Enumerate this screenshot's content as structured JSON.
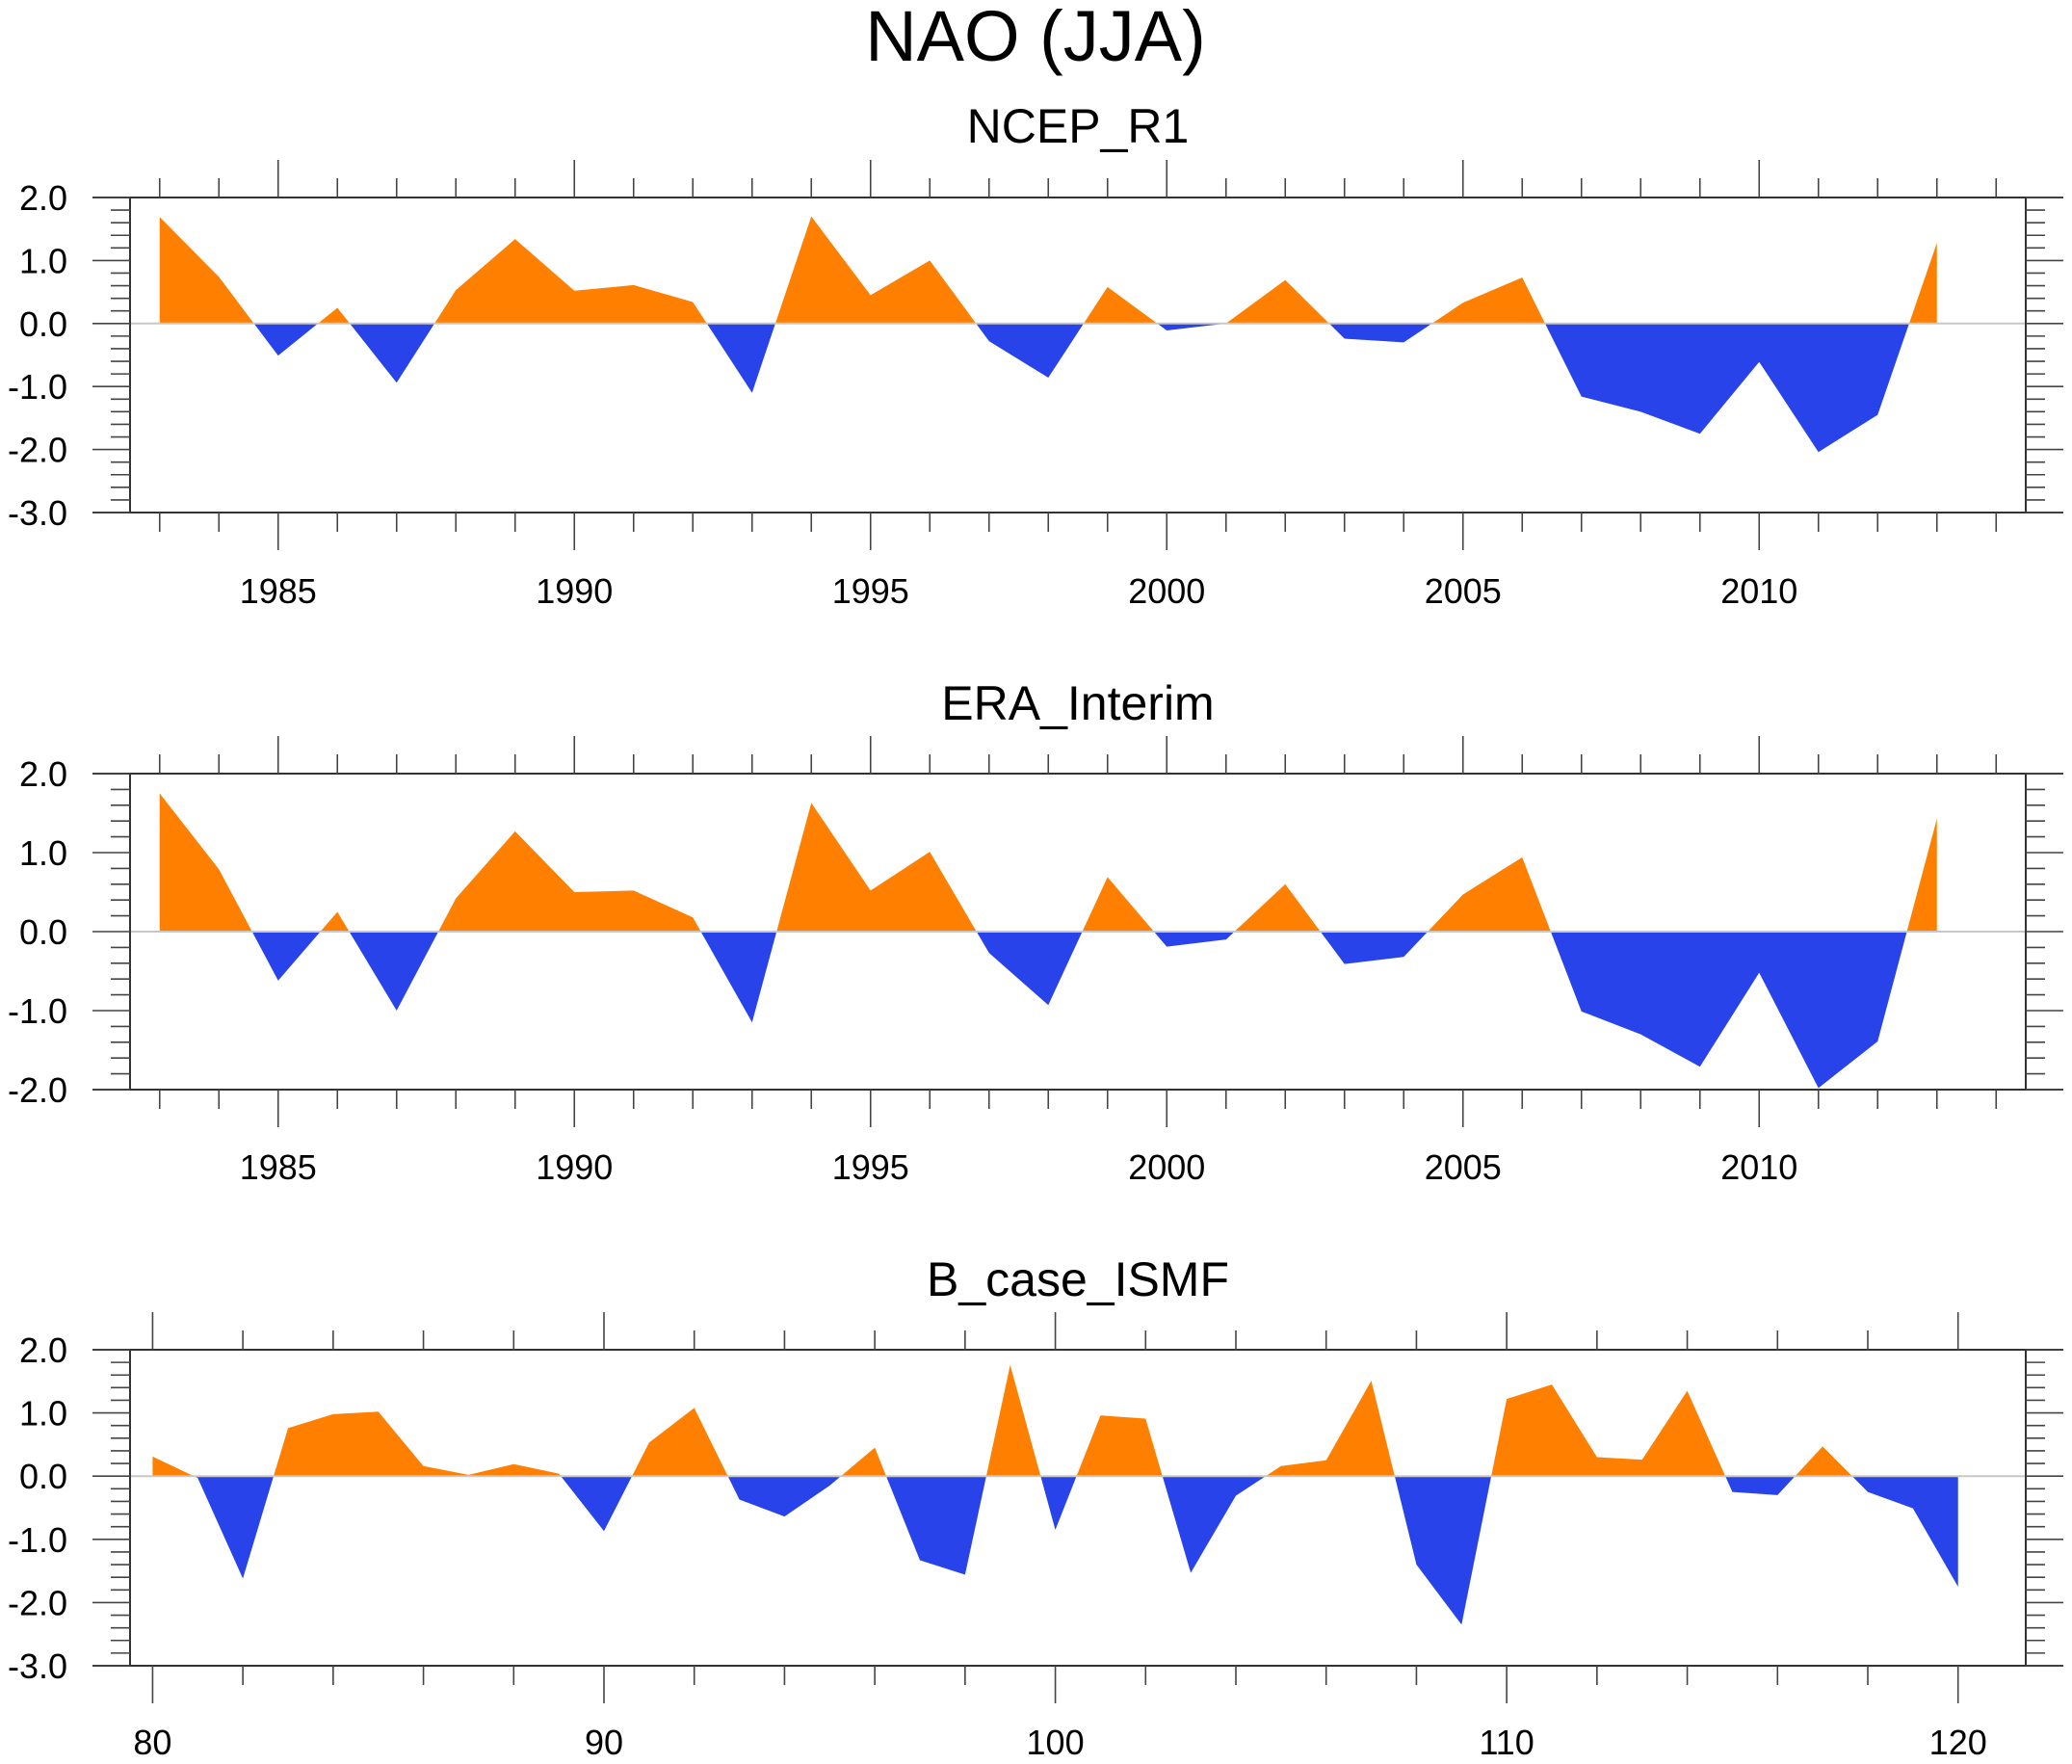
{
  "chart_data": {
    "title": "NAO (JJA)",
    "colors": {
      "positive": "#FF8000",
      "negative": "#2843EA",
      "zero_line": "#C8C8C8",
      "frame": "#000000"
    },
    "panels": [
      {
        "type": "area",
        "title": "NCEP_R1",
        "xlabel": "",
        "ylabel": "",
        "xlim": [
          1982.5,
          2014.5
        ],
        "ylim": [
          -3.0,
          2.0
        ],
        "x_major_ticks": [
          1985,
          1990,
          1995,
          2000,
          2005,
          2010
        ],
        "x_minor_step": 1,
        "x_tick_labels": [
          "1985",
          "1990",
          "1995",
          "2000",
          "2005",
          "2010"
        ],
        "y_major_ticks": [
          2.0,
          1.0,
          0.0,
          -1.0,
          -2.0,
          -3.0
        ],
        "y_tick_labels": [
          "2.0",
          "1.0",
          "0.0",
          "-1.0",
          "-2.0",
          "-3.0"
        ],
        "y_minor_step": 0.2,
        "x": [
          1983,
          1984,
          1985,
          1986,
          1987,
          1988,
          1989,
          1990,
          1991,
          1992,
          1993,
          1994,
          1995,
          1996,
          1997,
          1998,
          1999,
          2000,
          2001,
          2002,
          2003,
          2004,
          2005,
          2006,
          2007,
          2008,
          2009,
          2010,
          2011,
          2012,
          2013
        ],
        "values": [
          1.69,
          0.74,
          -0.51,
          0.25,
          -0.94,
          0.53,
          1.34,
          0.52,
          0.61,
          0.34,
          -1.1,
          1.7,
          0.45,
          1.0,
          -0.28,
          -0.86,
          0.58,
          -0.11,
          0.0,
          0.69,
          -0.24,
          -0.3,
          0.33,
          0.73,
          -1.16,
          -1.4,
          -1.75,
          -0.61,
          -2.04,
          -1.45,
          1.28
        ]
      },
      {
        "type": "area",
        "title": "ERA_Interim",
        "xlabel": "",
        "ylabel": "",
        "xlim": [
          1982.5,
          2014.5
        ],
        "ylim": [
          -2.0,
          2.0
        ],
        "x_major_ticks": [
          1985,
          1990,
          1995,
          2000,
          2005,
          2010
        ],
        "x_minor_step": 1,
        "x_tick_labels": [
          "1985",
          "1990",
          "1995",
          "2000",
          "2005",
          "2010"
        ],
        "y_major_ticks": [
          2.0,
          1.0,
          0.0,
          -1.0,
          -2.0
        ],
        "y_tick_labels": [
          "2.0",
          "1.0",
          "0.0",
          "-1.0",
          "-2.0"
        ],
        "y_minor_step": 0.2,
        "x": [
          1983,
          1984,
          1985,
          1986,
          1987,
          1988,
          1989,
          1990,
          1991,
          1992,
          1993,
          1994,
          1995,
          1996,
          1997,
          1998,
          1999,
          2000,
          2001,
          2002,
          2003,
          2004,
          2005,
          2006,
          2007,
          2008,
          2009,
          2010,
          2011,
          2012,
          2013
        ],
        "values": [
          1.75,
          0.79,
          -0.62,
          0.25,
          -1.0,
          0.42,
          1.27,
          0.5,
          0.52,
          0.18,
          -1.15,
          1.63,
          0.52,
          1.01,
          -0.27,
          -0.93,
          0.69,
          -0.19,
          -0.1,
          0.6,
          -0.41,
          -0.32,
          0.47,
          0.94,
          -1.01,
          -1.3,
          -1.71,
          -0.52,
          -1.98,
          -1.39,
          1.43
        ]
      },
      {
        "type": "area",
        "title": "B_case_ISMF",
        "xlabel": "",
        "ylabel": "",
        "xlim": [
          79.5,
          121.5
        ],
        "ylim": [
          -3.0,
          2.0
        ],
        "x_major_ticks": [
          80,
          90,
          100,
          110,
          120
        ],
        "x_minor_step": 2,
        "x_tick_labels": [
          "80",
          "90",
          "100",
          "110",
          "120"
        ],
        "y_major_ticks": [
          2.0,
          1.0,
          0.0,
          -1.0,
          -2.0,
          -3.0
        ],
        "y_tick_labels": [
          "2.0",
          "1.0",
          "0.0",
          "-1.0",
          "-2.0",
          "-3.0"
        ],
        "y_minor_step": 0.2,
        "x": [
          80,
          81,
          82,
          83,
          84,
          85,
          86,
          87,
          88,
          89,
          90,
          91,
          92,
          93,
          94,
          95,
          96,
          97,
          98,
          99,
          100,
          101,
          102,
          103,
          104,
          105,
          106,
          107,
          108,
          109,
          110,
          111,
          112,
          113,
          114,
          115,
          116,
          117,
          118,
          119,
          120
        ],
        "values": [
          0.31,
          -0.03,
          -1.62,
          0.76,
          0.98,
          1.02,
          0.16,
          0.02,
          0.19,
          0.04,
          -0.87,
          0.53,
          1.08,
          -0.37,
          -0.64,
          -0.15,
          0.45,
          -1.33,
          -1.56,
          1.76,
          -0.85,
          0.96,
          0.91,
          -1.53,
          -0.31,
          0.16,
          0.25,
          1.51,
          -1.4,
          -2.35,
          1.22,
          1.45,
          0.3,
          0.26,
          1.35,
          -0.25,
          -0.3,
          0.47,
          -0.25,
          -0.51,
          -1.75
        ]
      }
    ]
  }
}
